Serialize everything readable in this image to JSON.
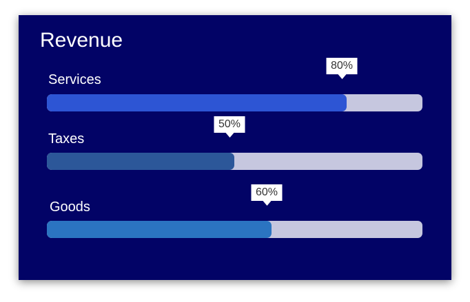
{
  "chart_data": {
    "type": "bar",
    "orientation": "horizontal",
    "title": "Revenue",
    "categories": [
      "Services",
      "Taxes",
      "Goods"
    ],
    "values": [
      80,
      50,
      60
    ],
    "value_labels": [
      "80%",
      "50%",
      "60%"
    ],
    "xlim": [
      0,
      100
    ],
    "colors": {
      "background": "#020366",
      "track": "#c6c7df",
      "bars": [
        "#2d55d4",
        "#2c5799",
        "#2b74c1"
      ],
      "tooltip": "#ffffff"
    },
    "grid": false,
    "legend": "none"
  }
}
